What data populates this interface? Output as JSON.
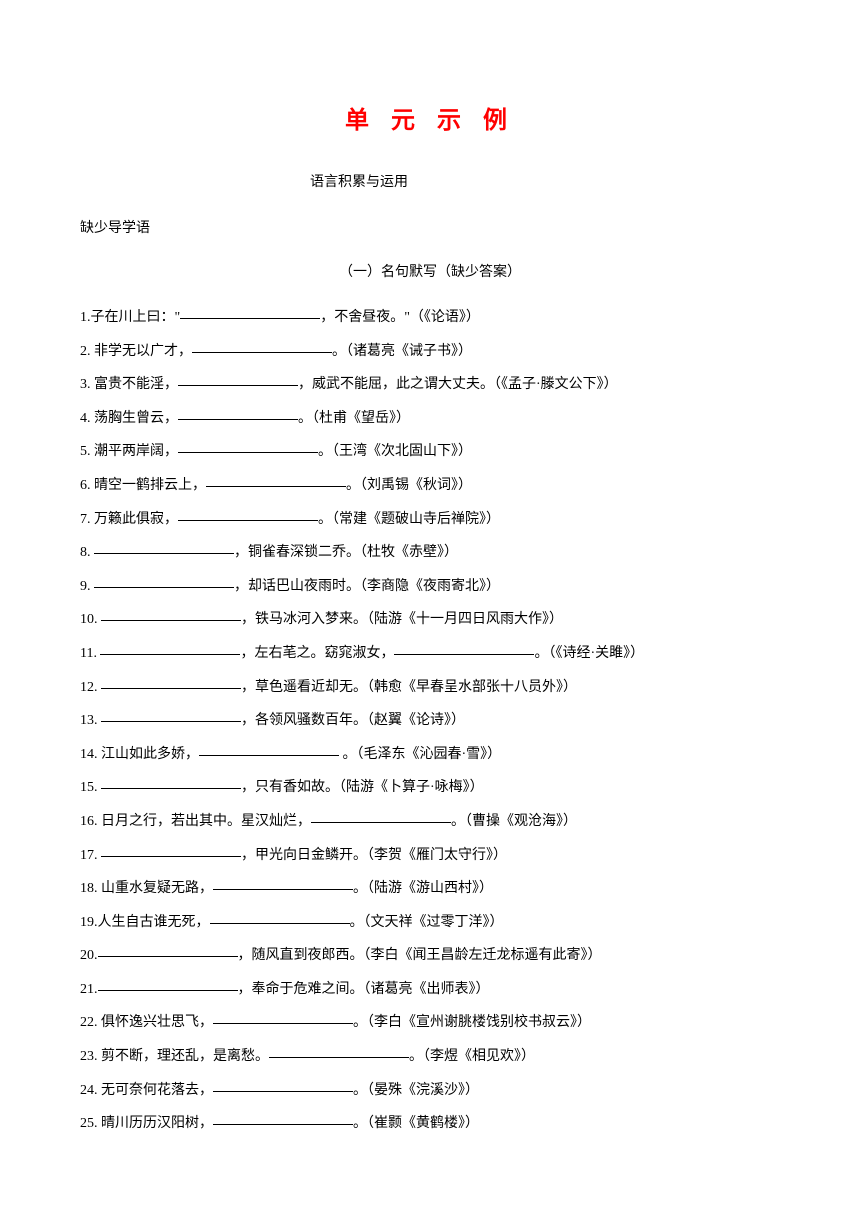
{
  "title": "单 元 示 例",
  "subtitle": "语言积累与运用",
  "note": "缺少导学语",
  "section_title": "（一）名句默写（缺少答案）",
  "questions": [
    {
      "num": "1.",
      "text_before": "子在川上曰：\"",
      "text_after": "，不舍昼夜。\"（《论语》）",
      "blank_class": "blank-long"
    },
    {
      "num": "2.",
      "text_before": " 非学无以广才，",
      "text_after": "。（诸葛亮《诫子书》）",
      "blank_class": "blank-long"
    },
    {
      "num": "3.",
      "text_before": " 富贵不能淫，",
      "text_after": "，威武不能屈，此之谓大丈夫。（《孟子·滕文公下》）",
      "blank_class": "blank-med"
    },
    {
      "num": "4.",
      "text_before": " 荡胸生曾云，",
      "text_after": "。（杜甫《望岳》）",
      "blank_class": "blank-med"
    },
    {
      "num": "5.",
      "text_before": " 潮平两岸阔，",
      "text_after": "。（王湾《次北固山下》）",
      "blank_class": "blank-long"
    },
    {
      "num": "6.",
      "text_before": " 晴空一鹤排云上，",
      "text_after": "。（刘禹锡《秋词》）",
      "blank_class": "blank-long"
    },
    {
      "num": "7.",
      "text_before": " 万籁此俱寂，",
      "text_after": "。（常建《题破山寺后禅院》）",
      "blank_class": "blank-long"
    },
    {
      "num": "8.",
      "text_before": " ",
      "text_after": "，铜雀春深锁二乔。（杜牧《赤壁》）",
      "blank_class": "blank-long"
    },
    {
      "num": "9.",
      "text_before": " ",
      "text_after": "，却话巴山夜雨时。（李商隐《夜雨寄北》）",
      "blank_class": "blank-long"
    },
    {
      "num": "10.",
      "text_before": " ",
      "text_after": "，铁马冰河入梦来。（陆游《十一月四日风雨大作》）",
      "blank_class": "blank-long"
    },
    {
      "num": "11.",
      "text_before": " ",
      "text_mid": "，左右芼之。窈窕淑女，",
      "text_after": "。（《诗经·关雎》）",
      "blank_class": "blank-long",
      "has_two_blanks": true
    },
    {
      "num": "12.",
      "text_before": " ",
      "text_after": "，草色遥看近却无。（韩愈《早春呈水部张十八员外》）",
      "blank_class": "blank-long"
    },
    {
      "num": "13.",
      "text_before": " ",
      "text_after": "，各领风骚数百年。（赵翼《论诗》）",
      "blank_class": "blank-long"
    },
    {
      "num": "14.",
      "text_before": " 江山如此多娇，",
      "text_after": " 。（毛泽东《沁园春·雪》）",
      "blank_class": "blank-long"
    },
    {
      "num": "15.",
      "text_before": " ",
      "text_after": "，只有香如故。（陆游《卜算子·咏梅》）",
      "blank_class": "blank-long"
    },
    {
      "num": "16.",
      "text_before": " 日月之行，若出其中。星汉灿烂，",
      "text_after": "。（曹操《观沧海》）",
      "blank_class": "blank-long"
    },
    {
      "num": "17.",
      "text_before": " ",
      "text_after": "，甲光向日金鳞开。（李贺《雁门太守行》）",
      "blank_class": "blank-long"
    },
    {
      "num": "18.",
      "text_before": " 山重水复疑无路，",
      "text_after": "。（陆游《游山西村》）",
      "blank_class": "blank-long"
    },
    {
      "num": "19.",
      "text_before": "人生自古谁无死，",
      "text_after": "。（文天祥《过零丁洋》）",
      "blank_class": "blank-long"
    },
    {
      "num": "20.",
      "text_before": "",
      "text_after": "，随风直到夜郎西。（李白《闻王昌龄左迁龙标遥有此寄》）",
      "blank_class": "blank-long"
    },
    {
      "num": "21.",
      "text_before": "",
      "text_after": "，奉命于危难之间。（诸葛亮《出师表》）",
      "blank_class": "blank-long"
    },
    {
      "num": "22.",
      "text_before": " 俱怀逸兴壮思飞，",
      "text_after": "。（李白《宣州谢朓楼饯别校书叔云》）",
      "blank_class": "blank-long"
    },
    {
      "num": "23.",
      "text_before": " 剪不断，理还乱，是离愁。",
      "text_after": "。（李煜《相见欢》）",
      "blank_class": "blank-long"
    },
    {
      "num": "24.",
      "text_before": " 无可奈何花落去，",
      "text_after": "。（晏殊《浣溪沙》）",
      "blank_class": "blank-long"
    },
    {
      "num": "25.",
      "text_before": " 晴川历历汉阳树，",
      "text_after": "。（崔颢《黄鹤楼》）",
      "blank_class": "blank-long"
    }
  ]
}
